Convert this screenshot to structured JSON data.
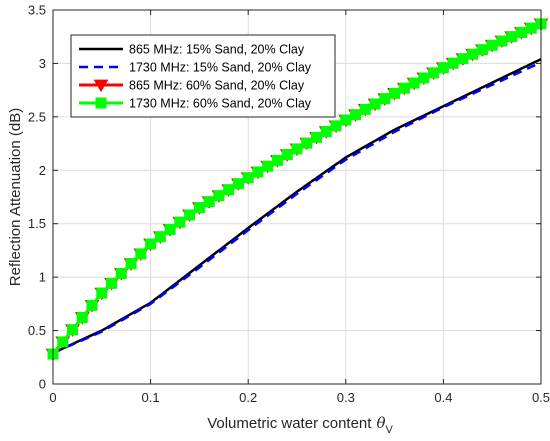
{
  "chart_data": {
    "type": "line",
    "title": "",
    "xlabel": "Volumetric water content",
    "xlabel_symbol": "θ",
    "xlabel_subscript": "V",
    "ylabel": "Reflection Attenuation (dB)",
    "xlim": [
      0,
      0.5
    ],
    "ylim": [
      0,
      3.5
    ],
    "xticks": [
      0,
      0.1,
      0.2,
      0.3,
      0.4,
      0.5
    ],
    "xtick_labels": [
      "0",
      "0.1",
      "0.2",
      "0.3",
      "0.4",
      "0.5"
    ],
    "yticks": [
      0,
      0.5,
      1,
      1.5,
      2,
      2.5,
      3,
      3.5
    ],
    "ytick_labels": [
      "0",
      "0.5",
      "1",
      "1.5",
      "2",
      "2.5",
      "3",
      "3.5"
    ],
    "grid": true,
    "legend_position": "top-left",
    "x": [
      0,
      0.05,
      0.1,
      0.15,
      0.2,
      0.25,
      0.3,
      0.35,
      0.4,
      0.45,
      0.5
    ],
    "series": [
      {
        "name": "865 MHz: 15% Sand, 20% Clay",
        "color": "#000000",
        "style": "solid",
        "marker": "none",
        "values": [
          0.29,
          0.5,
          0.76,
          1.11,
          1.46,
          1.8,
          2.12,
          2.38,
          2.6,
          2.82,
          3.04
        ]
      },
      {
        "name": "1730 MHz: 15% Sand, 20% Clay",
        "color": "#0000ff",
        "style": "dashed",
        "marker": "none",
        "values": [
          0.29,
          0.49,
          0.75,
          1.09,
          1.44,
          1.78,
          2.1,
          2.36,
          2.59,
          2.8,
          3.01
        ]
      },
      {
        "name": "865 MHz: 60% Sand, 20% Clay",
        "color": "#ff0000",
        "style": "solid",
        "marker": "triangle-down",
        "values": [
          0.28,
          0.85,
          1.31,
          1.65,
          1.93,
          2.2,
          2.47,
          2.72,
          2.96,
          3.17,
          3.37
        ]
      },
      {
        "name": "1730 MHz: 60% Sand, 20% Clay",
        "color": "#00ff00",
        "style": "solid",
        "marker": "square",
        "values": [
          0.28,
          0.85,
          1.31,
          1.65,
          1.93,
          2.2,
          2.47,
          2.72,
          2.96,
          3.17,
          3.37
        ]
      }
    ]
  }
}
